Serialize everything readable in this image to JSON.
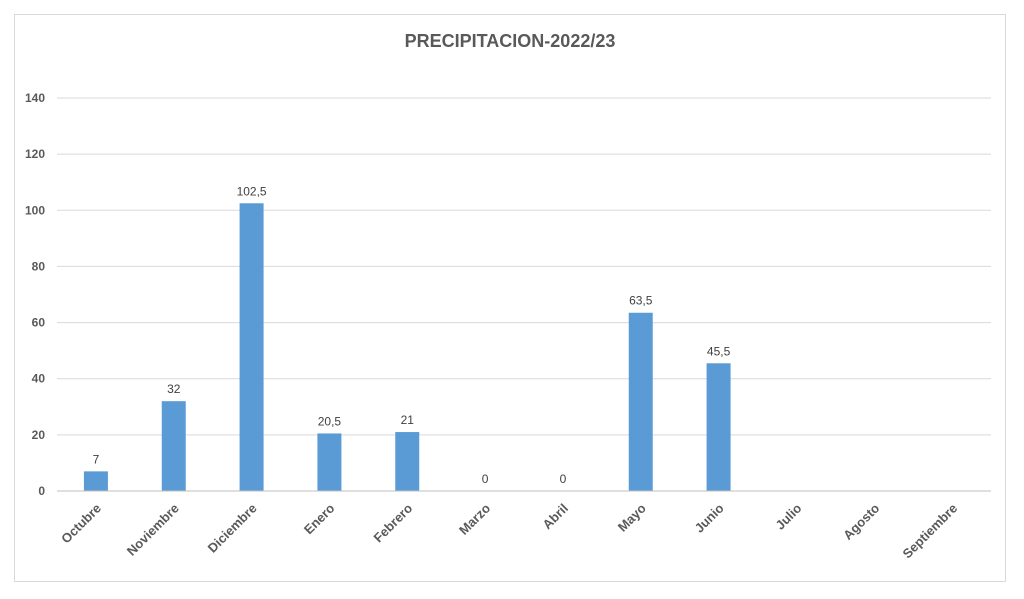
{
  "chart_data": {
    "type": "bar",
    "title": "PRECIPITACION-2022/23",
    "xlabel": "",
    "ylabel": "",
    "ylim": [
      0,
      140
    ],
    "yticks": [
      0,
      20,
      40,
      60,
      80,
      100,
      120,
      140
    ],
    "categories": [
      "Octubre",
      "Noviembre",
      "Diciembre",
      "Enero",
      "Febrero",
      "Marzo",
      "Abril",
      "Mayo",
      "Junio",
      "Julio",
      "Agosto",
      "Septiembre"
    ],
    "values": [
      7,
      32,
      102.5,
      20.5,
      21,
      0,
      0,
      63.5,
      45.5,
      null,
      null,
      null
    ],
    "data_labels": [
      "7",
      "32",
      "102,5",
      "20,5",
      "21",
      "0",
      "0",
      "63,5",
      "45,5",
      "",
      "",
      ""
    ],
    "grid": true,
    "legend": "none",
    "bar_color": "#5b9bd5"
  }
}
